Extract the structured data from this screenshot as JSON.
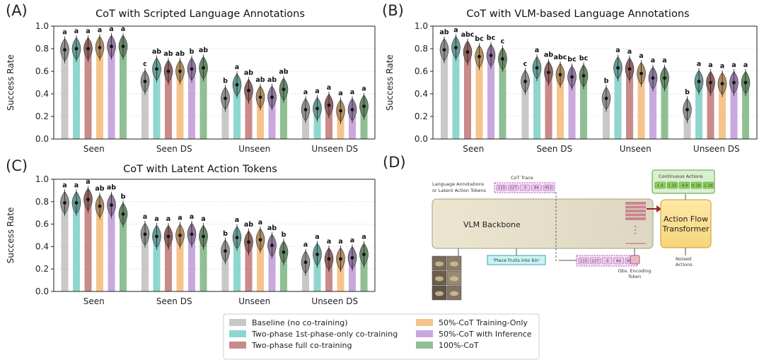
{
  "colors": {
    "baseline": "#c8c8c8",
    "two_phase_first": "#8fd6cf",
    "two_phase_full": "#c98a8a",
    "cot50_train": "#f6c48a",
    "cot50_infer": "#c9a8de",
    "cot100": "#8fbf92"
  },
  "chart_data": [
    {
      "panel": "(A)",
      "type": "bar",
      "title": "CoT with Scripted Language Annotations",
      "ylabel": "Success Rate",
      "ylim": [
        0.0,
        1.0
      ],
      "yticks": [
        "0.0",
        "0.2",
        "0.4",
        "0.6",
        "0.8",
        "1.0"
      ],
      "grid": true,
      "categories": [
        "Seen",
        "Seen DS",
        "Unseen",
        "Unseen DS"
      ],
      "series": [
        {
          "name": "Baseline (no co-training)",
          "values": [
            0.79,
            0.51,
            0.36,
            0.26
          ],
          "labels": [
            "a",
            "c",
            "b",
            "a"
          ]
        },
        {
          "name": "Two-phase 1st-phase-only co-training",
          "values": [
            0.8,
            0.62,
            0.48,
            0.27
          ],
          "labels": [
            "a",
            "ab",
            "a",
            "a"
          ]
        },
        {
          "name": "Two-phase full co-training",
          "values": [
            0.8,
            0.6,
            0.43,
            0.3
          ],
          "labels": [
            "a",
            "ab",
            "ab",
            "a"
          ]
        },
        {
          "name": "50%-CoT Training-Only",
          "values": [
            0.81,
            0.6,
            0.37,
            0.25
          ],
          "labels": [
            "a",
            "ab",
            "ab",
            "a"
          ]
        },
        {
          "name": "50%-CoT with Inference",
          "values": [
            0.82,
            0.62,
            0.37,
            0.26
          ],
          "labels": [
            "a",
            "b",
            "ab",
            "a"
          ]
        },
        {
          "name": "100%-CoT",
          "values": [
            0.82,
            0.63,
            0.44,
            0.29
          ],
          "labels": [
            "a",
            "ab",
            "ab",
            "a"
          ]
        }
      ]
    },
    {
      "panel": "(B)",
      "type": "bar",
      "title": "CoT with VLM-based Language Annotations",
      "ylabel": "Success Rate",
      "ylim": [
        0.0,
        1.0
      ],
      "yticks": [
        "0.0",
        "0.2",
        "0.4",
        "0.6",
        "0.8",
        "1.0"
      ],
      "grid": true,
      "categories": [
        "Seen",
        "Seen DS",
        "Unseen",
        "Unseen DS"
      ],
      "series": [
        {
          "name": "Baseline (no co-training)",
          "values": [
            0.79,
            0.51,
            0.36,
            0.26
          ],
          "labels": [
            "ab",
            "c",
            "b",
            "b"
          ]
        },
        {
          "name": "Two-phase 1st-phase-only co-training",
          "values": [
            0.81,
            0.63,
            0.63,
            0.51
          ],
          "labels": [
            "a",
            "a",
            "a",
            "a"
          ]
        },
        {
          "name": "Two-phase full co-training",
          "values": [
            0.77,
            0.59,
            0.62,
            0.5
          ],
          "labels": [
            "abc",
            "ab",
            "a",
            "a"
          ]
        },
        {
          "name": "50%-CoT Training-Only",
          "values": [
            0.73,
            0.57,
            0.58,
            0.49
          ],
          "labels": [
            "bc",
            "abc",
            "a",
            "a"
          ]
        },
        {
          "name": "50%-CoT with Inference",
          "values": [
            0.74,
            0.55,
            0.54,
            0.5
          ],
          "labels": [
            "bc",
            "bc",
            "a",
            "a"
          ]
        },
        {
          "name": "100%-CoT",
          "values": [
            0.71,
            0.56,
            0.54,
            0.5
          ],
          "labels": [
            "c",
            "bc",
            "a",
            "a"
          ]
        }
      ]
    },
    {
      "panel": "(C)",
      "type": "bar",
      "title": "CoT with Latent Action Tokens",
      "ylabel": "Success Rate",
      "ylim": [
        0.0,
        1.0
      ],
      "yticks": [
        "0.0",
        "0.2",
        "0.4",
        "0.6",
        "0.8",
        "1.0"
      ],
      "grid": true,
      "categories": [
        "Seen",
        "Seen DS",
        "Unseen",
        "Unseen DS"
      ],
      "series": [
        {
          "name": "Baseline (no co-training)",
          "values": [
            0.79,
            0.51,
            0.36,
            0.26
          ],
          "labels": [
            "a",
            "a",
            "b",
            "a"
          ]
        },
        {
          "name": "Two-phase 1st-phase-only co-training",
          "values": [
            0.79,
            0.49,
            0.48,
            0.33
          ],
          "labels": [
            "a",
            "a",
            "a",
            "a"
          ]
        },
        {
          "name": "Two-phase full co-training",
          "values": [
            0.82,
            0.49,
            0.44,
            0.29
          ],
          "labels": [
            "a",
            "a",
            "ab",
            "a"
          ]
        },
        {
          "name": "50%-CoT Training-Only",
          "values": [
            0.76,
            0.5,
            0.46,
            0.29
          ],
          "labels": [
            "ab",
            "a",
            "a",
            "a"
          ]
        },
        {
          "name": "50%-CoT with Inference",
          "values": [
            0.77,
            0.51,
            0.41,
            0.3
          ],
          "labels": [
            "ab",
            "a",
            "ab",
            "a"
          ]
        },
        {
          "name": "100%-CoT",
          "values": [
            0.69,
            0.49,
            0.35,
            0.33
          ],
          "labels": [
            "b",
            "a",
            "b",
            "a"
          ]
        }
      ]
    }
  ],
  "diagram": {
    "panel": "(D)",
    "input_label": "Language Annotations\nor Latent Action Tokens",
    "cot_trace_label": "CoT Trace",
    "cot_trace_tokens": [
      "115",
      "227",
      "-5",
      "84",
      "952"
    ],
    "continuous_actions_label": "Continuous Actions",
    "continuous_action_values": [
      "1.4",
      "1.32",
      "-4.9",
      "0.18",
      "1.28"
    ],
    "vlm_backbone_label": "VLM Backbone",
    "action_flow_label": "Action Flow\nTransformer",
    "instruction_text": "'Place fruits into bin'",
    "obs_token_label": "Obs. Encoding\nToken",
    "noised_actions_label": "Noised\nActions",
    "output_tokens": [
      "115",
      "227",
      "-5",
      "84",
      "952"
    ]
  }
}
